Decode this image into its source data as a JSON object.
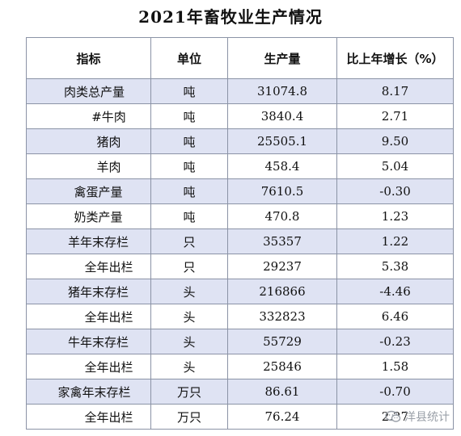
{
  "title": "2021年畜牧业生产情况",
  "table": {
    "headers": [
      "指标",
      "单位",
      "生产量",
      "比上年增长（%）"
    ],
    "rows": [
      {
        "indicator": "肉类总产量",
        "unit": "吨",
        "output": "31074.8",
        "growth": "8.17"
      },
      {
        "indicator": "#牛肉",
        "unit": "吨",
        "output": "3840.4",
        "growth": "2.71"
      },
      {
        "indicator": "猪肉",
        "unit": "吨",
        "output": "25505.1",
        "growth": "9.50"
      },
      {
        "indicator": "羊肉",
        "unit": "吨",
        "output": "458.4",
        "growth": "5.04"
      },
      {
        "indicator": "禽蛋产量",
        "unit": "吨",
        "output": "7610.5",
        "growth": "-0.30"
      },
      {
        "indicator": "奶类产量",
        "unit": "吨",
        "output": "470.8",
        "growth": "1.23"
      },
      {
        "indicator": "羊年末存栏",
        "unit": "只",
        "output": "35357",
        "growth": "1.22"
      },
      {
        "indicator": "全年出栏",
        "unit": "只",
        "output": "29237",
        "growth": "5.38"
      },
      {
        "indicator": "猪年末存栏",
        "unit": "头",
        "output": "216866",
        "growth": "-4.46"
      },
      {
        "indicator": "全年出栏",
        "unit": "头",
        "output": "332823",
        "growth": "6.46"
      },
      {
        "indicator": "牛年末存栏",
        "unit": "头",
        "output": "55729",
        "growth": "-0.23"
      },
      {
        "indicator": "全年出栏",
        "unit": "头",
        "output": "25846",
        "growth": "1.58"
      },
      {
        "indicator": "家禽年末存栏",
        "unit": "万只",
        "output": "86.61",
        "growth": "-0.70"
      },
      {
        "indicator": "全年出栏",
        "unit": "万只",
        "output": "76.24",
        "growth": "2.27"
      }
    ]
  },
  "watermark": {
    "text": "洋县统计",
    "icon": "wechat-icon"
  },
  "colors": {
    "row_shade": "#dfe3f3",
    "border": "#8b93a6"
  }
}
